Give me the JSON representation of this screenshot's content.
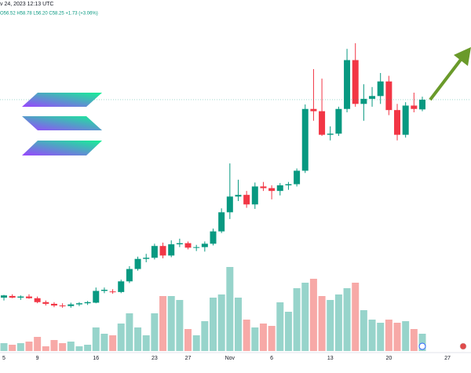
{
  "chart_data": {
    "type": "candlestick",
    "subtitle": "v 24, 2023 12:13 UTC",
    "ohlc_label": "O56.52 H58.78 L56.20 C58.25 +1.73 (+3.06%)",
    "categories": [
      "5",
      null,
      null,
      null,
      "9",
      null,
      null,
      null,
      null,
      null,
      null,
      "16",
      null,
      null,
      null,
      null,
      null,
      null,
      "23",
      null,
      null,
      null,
      "27",
      null,
      null,
      null,
      null,
      "Nov",
      null,
      null,
      null,
      null,
      "6",
      null,
      null,
      null,
      null,
      null,
      null,
      "13",
      null,
      null,
      null,
      null,
      null,
      null,
      "20",
      null,
      null,
      null,
      null,
      null,
      null,
      "27"
    ],
    "open": [
      23.0,
      23.3,
      23.0,
      23.2,
      22.9,
      22.2,
      21.9,
      21.6,
      21.5,
      21.8,
      22.0,
      22.1,
      24.2,
      24.1,
      24.0,
      25.9,
      28.1,
      29.9,
      30.1,
      32.2,
      30.5,
      32.5,
      32.7,
      31.9,
      32.0,
      32.6,
      34.8,
      38.2,
      41.0,
      41.3,
      39.6,
      42.8,
      42.5,
      42.0,
      43.0,
      43.2,
      45.6,
      56.6,
      56.2,
      52.0,
      52.2,
      56.6,
      65.3,
      57.5,
      58.4,
      58.9,
      61.5,
      56.4,
      52.0,
      57.2,
      56.52,
      null,
      null,
      null
    ],
    "high": [
      23.5,
      23.6,
      23.4,
      23.6,
      23.2,
      22.5,
      22.2,
      22.0,
      22.1,
      22.2,
      22.4,
      24.8,
      24.8,
      24.5,
      26.2,
      28.6,
      30.3,
      30.8,
      32.6,
      32.8,
      33.2,
      33.5,
      33.0,
      32.4,
      33.0,
      35.3,
      38.9,
      46.9,
      44.0,
      42.0,
      43.5,
      43.6,
      43.0,
      43.4,
      43.6,
      46.0,
      57.4,
      63.7,
      62.0,
      53.5,
      57.0,
      67.3,
      68.3,
      61.0,
      60.5,
      63.0,
      62.5,
      57.5,
      57.8,
      59.5,
      58.78,
      null,
      null,
      null
    ],
    "low": [
      22.5,
      22.9,
      22.6,
      22.8,
      22.0,
      21.6,
      21.3,
      21.2,
      21.2,
      21.5,
      21.7,
      22.0,
      23.8,
      23.7,
      23.8,
      25.6,
      27.8,
      29.3,
      29.8,
      30.0,
      30.2,
      32.0,
      31.6,
      31.3,
      31.2,
      32.3,
      34.5,
      37.0,
      40.2,
      39.0,
      38.8,
      42.0,
      40.5,
      41.2,
      42.2,
      42.8,
      45.2,
      54.5,
      51.8,
      51.0,
      51.8,
      56.0,
      57.0,
      54.5,
      57.0,
      57.5,
      55.5,
      51.0,
      51.5,
      56.0,
      56.2,
      null,
      null,
      null
    ],
    "close": [
      23.4,
      23.0,
      23.2,
      22.9,
      22.2,
      21.9,
      21.6,
      21.5,
      21.8,
      22.0,
      22.2,
      24.2,
      24.4,
      24.0,
      25.9,
      28.1,
      29.9,
      30.1,
      32.2,
      30.5,
      32.5,
      32.7,
      31.9,
      32.0,
      32.6,
      34.8,
      38.2,
      41.0,
      41.3,
      39.6,
      42.8,
      42.5,
      42.0,
      43.0,
      43.2,
      45.6,
      56.6,
      56.2,
      52.0,
      52.2,
      56.6,
      65.3,
      57.5,
      58.4,
      58.9,
      61.5,
      56.4,
      52.0,
      57.2,
      56.6,
      58.25,
      null,
      null,
      null
    ],
    "volume": [
      10,
      8,
      10,
      12,
      18,
      6,
      14,
      10,
      12,
      6,
      8,
      30,
      22,
      20,
      35,
      48,
      30,
      20,
      48,
      70,
      70,
      65,
      28,
      20,
      38,
      68,
      72,
      107,
      68,
      40,
      30,
      35,
      32,
      62,
      50,
      80,
      87,
      92,
      70,
      65,
      72,
      80,
      87,
      52,
      40,
      36,
      40,
      36,
      38,
      28,
      22,
      null,
      null,
      null
    ],
    "up_color": "#089981",
    "down_color": "#f23645",
    "up_volume_color": "#97d4cb",
    "down_volume_color": "#f7a9a7",
    "ylim": [
      10,
      76
    ],
    "y2lim": [
      0,
      447
    ]
  }
}
